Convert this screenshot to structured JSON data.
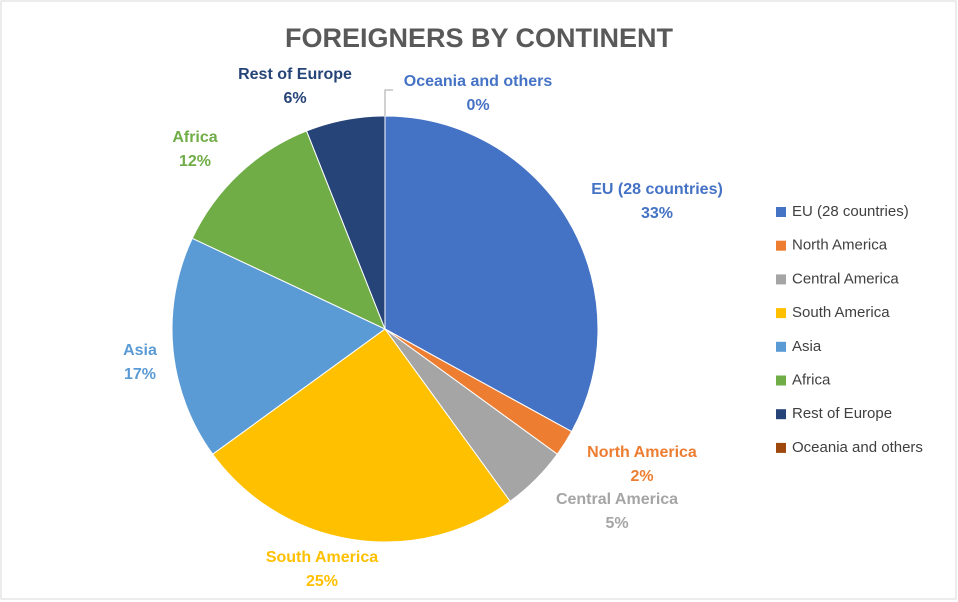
{
  "chart_data": {
    "type": "pie",
    "title": "FOREIGNERS BY CONTINENT",
    "categories": [
      "EU (28 countries)",
      "North America",
      "Central America",
      "South America",
      "Asia",
      "Africa",
      "Rest of Europe",
      "Oceania and others"
    ],
    "values": [
      33,
      2,
      5,
      25,
      17,
      12,
      6,
      0
    ],
    "value_labels": [
      "33%",
      "2%",
      "5%",
      "25%",
      "17%",
      "12%",
      "6%",
      "0%"
    ],
    "colors": [
      "#4472c4",
      "#ed7d31",
      "#a5a5a5",
      "#ffc000",
      "#5b9bd5",
      "#70ad47",
      "#264478",
      "#9e480e"
    ],
    "legend": "right"
  }
}
